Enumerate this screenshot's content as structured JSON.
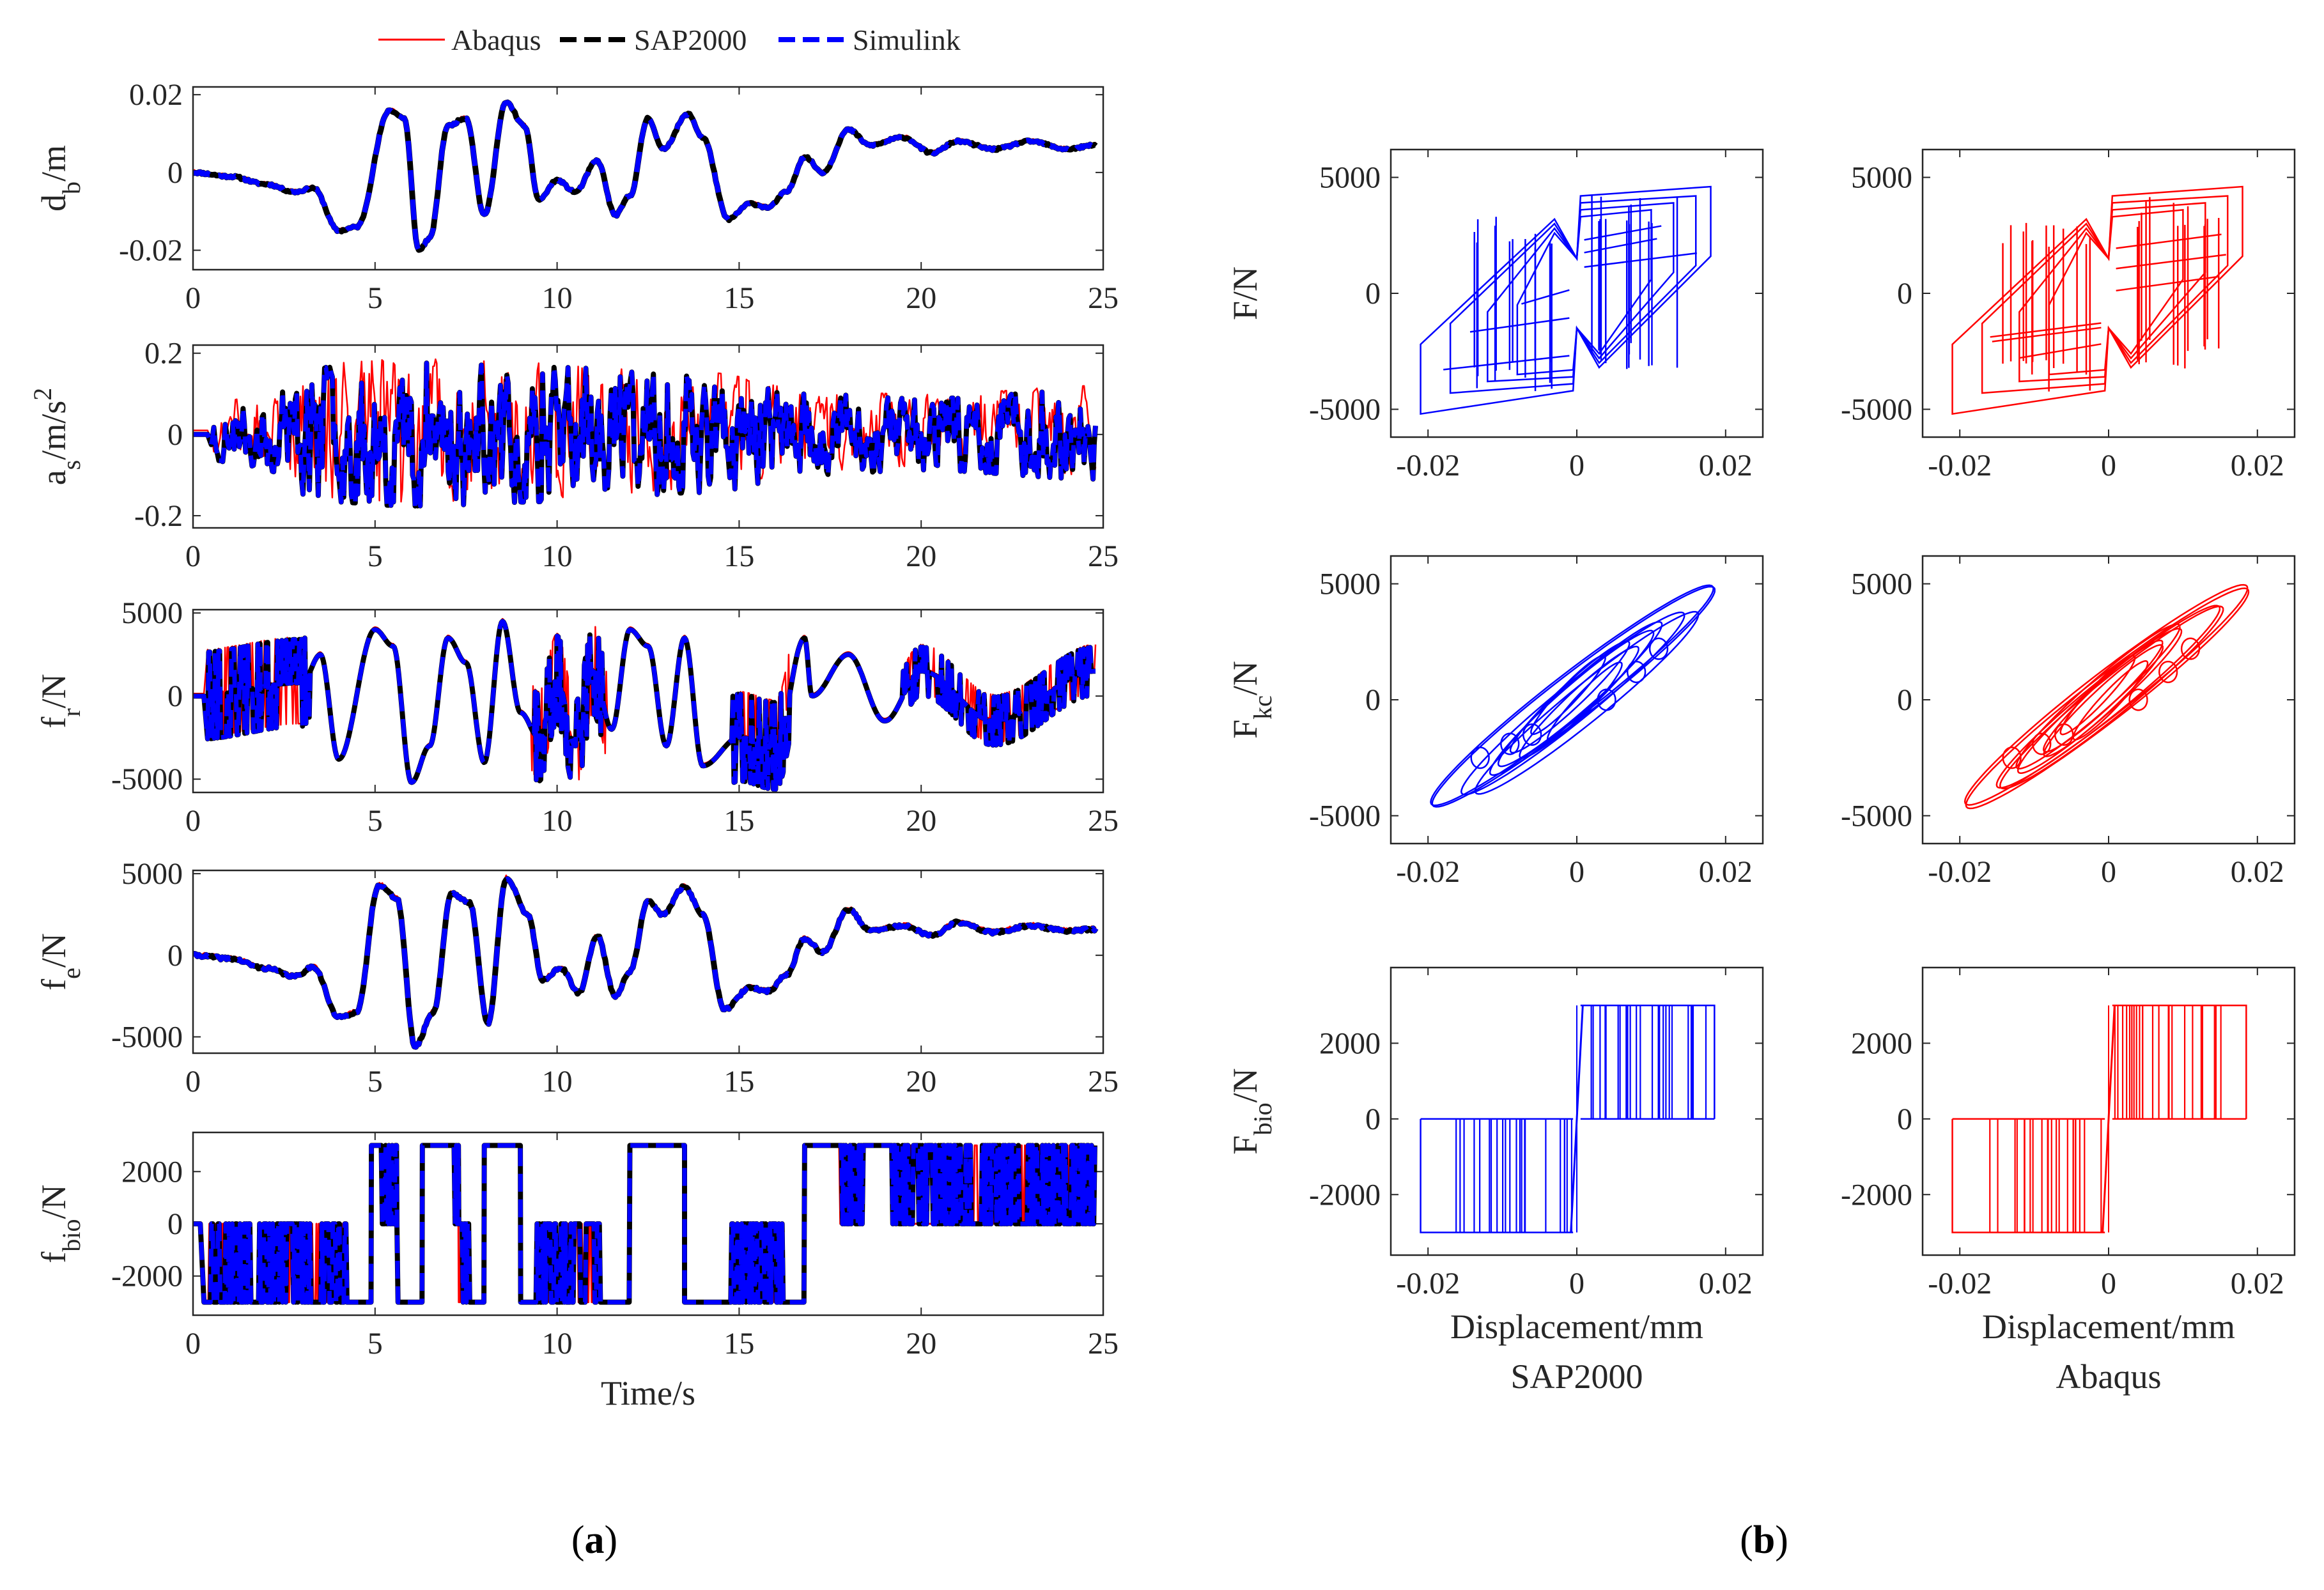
{
  "legend": [
    {
      "label": "Abaqus",
      "color": "#ff0000",
      "style": "solid"
    },
    {
      "label": "SAP2000",
      "color": "#000000",
      "style": "dashed"
    },
    {
      "label": "Simulink",
      "color": "#0000ff",
      "style": "dashed"
    }
  ],
  "panel_labels": {
    "a": {
      "open": "(",
      "letter": "a",
      "close": ")"
    },
    "b": {
      "open": "(",
      "letter": "b",
      "close": ")"
    }
  },
  "chart_data": [
    {
      "id": "ts1",
      "type": "line",
      "ylabel": {
        "main": "d",
        "sub": "b",
        "rest": "/m",
        "sup": ""
      },
      "xlabel": "",
      "xlim": [
        0,
        25
      ],
      "ylim": [
        -0.025,
        0.022
      ],
      "xticks": [
        0,
        5,
        10,
        15,
        20,
        25
      ],
      "xtick_labels": [
        "0",
        "5",
        "10",
        "15",
        "20",
        "25"
      ],
      "yticks": [
        0.02,
        0,
        -0.02
      ],
      "ytick_labels": [
        "0.02",
        "0",
        "-0.02"
      ],
      "signal": {
        "kind": "smooth",
        "seed": 11,
        "t0": 0,
        "keypoints": [
          [
            0,
            0
          ],
          [
            1,
            -0.001
          ],
          [
            2,
            -0.003
          ],
          [
            2.8,
            -0.005
          ],
          [
            3.3,
            -0.004
          ],
          [
            4,
            -0.015
          ],
          [
            4.5,
            -0.014
          ],
          [
            5.4,
            0.016
          ],
          [
            5.8,
            0.014
          ],
          [
            6.2,
            -0.02
          ],
          [
            6.5,
            -0.017
          ],
          [
            7,
            0.012
          ],
          [
            7.5,
            0.014
          ],
          [
            8,
            -0.011
          ],
          [
            8.6,
            0.018
          ],
          [
            9.1,
            0.012
          ],
          [
            9.5,
            -0.007
          ],
          [
            10,
            -0.002
          ],
          [
            10.5,
            -0.005
          ],
          [
            11.1,
            0.003
          ],
          [
            11.6,
            -0.011
          ],
          [
            12,
            -0.006
          ],
          [
            12.5,
            0.014
          ],
          [
            12.9,
            0.006
          ],
          [
            13.6,
            0.015
          ],
          [
            14,
            0.009
          ],
          [
            14.7,
            -0.012
          ],
          [
            15.3,
            -0.008
          ],
          [
            15.8,
            -0.009
          ],
          [
            16.3,
            -0.005
          ],
          [
            16.8,
            0.004
          ],
          [
            17.3,
            0.0
          ],
          [
            18,
            0.011
          ],
          [
            18.6,
            0.007
          ],
          [
            19.5,
            0.009
          ],
          [
            20.3,
            0.005
          ],
          [
            21,
            0.008
          ],
          [
            22,
            0.006
          ],
          [
            23,
            0.008
          ],
          [
            24,
            0.006
          ],
          [
            24.8,
            0.007
          ]
        ],
        "noise": 0.0003
      },
      "series": [
        {
          "name": "Abaqus",
          "color": "#ff0000",
          "width": 2.5,
          "dash": "",
          "offset": 0.0004
        },
        {
          "name": "SAP2000",
          "color": "#000000",
          "width": 9,
          "dash": "",
          "offset": 0
        },
        {
          "name": "Simulink",
          "color": "#0000ff",
          "width": 8,
          "dash": "32,14",
          "offset": 0
        }
      ]
    },
    {
      "id": "ts2",
      "type": "line",
      "ylabel": {
        "main": "a",
        "sub": "s",
        "rest": "/m/s",
        "sup": "2"
      },
      "xlabel": "",
      "xlim": [
        0,
        25
      ],
      "ylim": [
        -0.23,
        0.22
      ],
      "xticks": [
        0,
        5,
        10,
        15,
        20,
        25
      ],
      "xtick_labels": [
        "0",
        "5",
        "10",
        "15",
        "20",
        "25"
      ],
      "yticks": [
        0.2,
        0,
        -0.2
      ],
      "ytick_labels": [
        "0.2",
        "0",
        "-0.2"
      ],
      "signal": {
        "kind": "noisy",
        "seed": 23,
        "t0": 0.5,
        "amp": 0.13,
        "jitter": 0.06,
        "envelope": [
          [
            0,
            0.05
          ],
          [
            2,
            0.08
          ],
          [
            3.5,
            0.15
          ],
          [
            6,
            0.16
          ],
          [
            10,
            0.15
          ],
          [
            14,
            0.13
          ],
          [
            17,
            0.09
          ],
          [
            20,
            0.08
          ],
          [
            25,
            0.1
          ]
        ]
      },
      "series": [
        {
          "name": "Abaqus",
          "color": "#ff0000",
          "width": 2.5,
          "dash": "",
          "offset": 0.01
        },
        {
          "name": "SAP2000",
          "color": "#000000",
          "width": 8,
          "dash": "",
          "offset": 0
        },
        {
          "name": "Simulink",
          "color": "#0000ff",
          "width": 7,
          "dash": "28,12",
          "offset": 0
        }
      ]
    },
    {
      "id": "ts3",
      "type": "line",
      "ylabel": {
        "main": "f",
        "sub": "r",
        "rest": "/N",
        "sup": ""
      },
      "xlabel": "",
      "xlim": [
        0,
        25
      ],
      "ylim": [
        -5800,
        5200
      ],
      "xticks": [
        0,
        5,
        10,
        15,
        20,
        25
      ],
      "xtick_labels": [
        "0",
        "5",
        "10",
        "15",
        "20",
        "25"
      ],
      "yticks": [
        5000,
        0,
        -5000
      ],
      "ytick_labels": [
        "5000",
        "0",
        "-5000"
      ],
      "signal": {
        "kind": "switching",
        "seed": 37,
        "t0": 0.4,
        "base": [
          [
            0,
            0
          ],
          [
            3,
            800
          ],
          [
            3.5,
            2500
          ],
          [
            4,
            -3800
          ],
          [
            5,
            4000
          ],
          [
            5.5,
            3000
          ],
          [
            6,
            -5200
          ],
          [
            6.5,
            -3000
          ],
          [
            7,
            3500
          ],
          [
            7.5,
            2000
          ],
          [
            8,
            -4000
          ],
          [
            8.5,
            4500
          ],
          [
            9,
            -1000
          ],
          [
            9.5,
            -2500
          ],
          [
            10,
            1000
          ],
          [
            10.5,
            -3000
          ],
          [
            11,
            1500
          ],
          [
            11.5,
            -2000
          ],
          [
            12,
            4000
          ],
          [
            12.5,
            3000
          ],
          [
            13,
            -3000
          ],
          [
            13.5,
            3500
          ],
          [
            14,
            -4200
          ],
          [
            15,
            -2500
          ],
          [
            16,
            -3000
          ],
          [
            16.8,
            3500
          ],
          [
            17,
            0
          ],
          [
            18,
            2500
          ],
          [
            19,
            -1500
          ],
          [
            20,
            1500
          ],
          [
            22,
            -1500
          ],
          [
            24.8,
            1500
          ]
        ],
        "level": 2900
      },
      "series": [
        {
          "name": "Abaqus",
          "color": "#ff0000",
          "width": 2.5,
          "dash": "",
          "offset": 150
        },
        {
          "name": "SAP2000",
          "color": "#000000",
          "width": 8,
          "dash": "",
          "offset": 0
        },
        {
          "name": "Simulink",
          "color": "#0000ff",
          "width": 7,
          "dash": "28,12",
          "offset": 0
        }
      ]
    },
    {
      "id": "ts4",
      "type": "line",
      "ylabel": {
        "main": "f",
        "sub": "e",
        "rest": "/N",
        "sup": ""
      },
      "xlabel": "",
      "xlim": [
        0,
        25
      ],
      "ylim": [
        -6000,
        5200
      ],
      "xticks": [
        0,
        5,
        10,
        15,
        20,
        25
      ],
      "xtick_labels": [
        "0",
        "5",
        "10",
        "15",
        "20",
        "25"
      ],
      "yticks": [
        5000,
        0,
        -5000
      ],
      "ytick_labels": [
        "5000",
        "0",
        "-5000"
      ],
      "signal": {
        "kind": "smooth",
        "seed": 41,
        "t0": 0,
        "keypoints": [
          [
            0,
            0
          ],
          [
            1,
            -200
          ],
          [
            2,
            -800
          ],
          [
            2.8,
            -1300
          ],
          [
            3.3,
            -700
          ],
          [
            4,
            -3800
          ],
          [
            4.5,
            -3500
          ],
          [
            5.1,
            4300
          ],
          [
            5.6,
            3500
          ],
          [
            6.1,
            -5600
          ],
          [
            6.6,
            -3500
          ],
          [
            7.1,
            3800
          ],
          [
            7.6,
            3200
          ],
          [
            8.1,
            -4200
          ],
          [
            8.6,
            4700
          ],
          [
            9.2,
            2500
          ],
          [
            9.6,
            -1500
          ],
          [
            10.1,
            -800
          ],
          [
            10.6,
            -2300
          ],
          [
            11.1,
            1200
          ],
          [
            11.6,
            -2500
          ],
          [
            12,
            -1000
          ],
          [
            12.5,
            3300
          ],
          [
            12.9,
            2500
          ],
          [
            13.5,
            4200
          ],
          [
            14,
            2500
          ],
          [
            14.6,
            -3300
          ],
          [
            15.3,
            -2000
          ],
          [
            15.8,
            -2200
          ],
          [
            16.3,
            -1200
          ],
          [
            16.8,
            1000
          ],
          [
            17.3,
            200
          ],
          [
            18,
            2800
          ],
          [
            18.6,
            1500
          ],
          [
            19.5,
            1800
          ],
          [
            20.3,
            1200
          ],
          [
            21,
            2000
          ],
          [
            22,
            1400
          ],
          [
            23,
            1800
          ],
          [
            24,
            1500
          ],
          [
            24.8,
            1600
          ]
        ],
        "noise": 90
      },
      "series": [
        {
          "name": "Abaqus",
          "color": "#ff0000",
          "width": 2.5,
          "dash": "",
          "offset": 120
        },
        {
          "name": "SAP2000",
          "color": "#000000",
          "width": 9,
          "dash": "",
          "offset": 0
        },
        {
          "name": "Simulink",
          "color": "#0000ff",
          "width": 8,
          "dash": "32,14",
          "offset": 0
        }
      ]
    },
    {
      "id": "ts5",
      "type": "line",
      "ylabel": {
        "main": "f",
        "sub": "bio",
        "rest": "/N",
        "sup": ""
      },
      "xlabel": "Time/s",
      "xlim": [
        0,
        25
      ],
      "ylim": [
        -3500,
        3500
      ],
      "xticks": [
        0,
        5,
        10,
        15,
        20,
        25
      ],
      "xtick_labels": [
        "0",
        "5",
        "10",
        "15",
        "20",
        "25"
      ],
      "yticks": [
        2000,
        0,
        -2000
      ],
      "ytick_labels": [
        "2000",
        "0",
        "-2000"
      ],
      "signal": {
        "kind": "binary",
        "seed": 53,
        "t0": 0.3,
        "level": 3000,
        "segments": [
          [
            0.3,
            4.9,
            -1
          ],
          [
            4.9,
            5.6,
            1
          ],
          [
            5.6,
            6.3,
            -1
          ],
          [
            6.3,
            7.3,
            1
          ],
          [
            7.3,
            8.0,
            -1
          ],
          [
            8.0,
            9.0,
            1
          ],
          [
            9.0,
            9.9,
            -1
          ],
          [
            9.9,
            11.5,
            -1
          ],
          [
            11.5,
            12.0,
            -1
          ],
          [
            12.0,
            13.5,
            1
          ],
          [
            13.5,
            14.5,
            -1
          ],
          [
            14.5,
            16.8,
            -1
          ],
          [
            16.8,
            17.6,
            1
          ],
          [
            17.6,
            18.5,
            1
          ],
          [
            18.5,
            24.8,
            1
          ]
        ],
        "dense": [
          [
            0.4,
            4.2
          ],
          [
            5.2,
            5.6
          ],
          [
            7.2,
            7.6
          ],
          [
            9.4,
            10.0
          ],
          [
            10.1,
            11.2
          ],
          [
            14.7,
            16.2
          ],
          [
            17.7,
            18.4
          ],
          [
            19.2,
            24.8
          ]
        ]
      },
      "series": [
        {
          "name": "Abaqus",
          "color": "#ff0000",
          "width": 3,
          "dash": "",
          "offset": 0
        },
        {
          "name": "SAP2000",
          "color": "#000000",
          "width": 8,
          "dash": "",
          "offset": 0
        },
        {
          "name": "Simulink",
          "color": "#0000ff",
          "width": 7,
          "dash": "28,12",
          "offset": 0
        }
      ]
    },
    {
      "id": "hy1",
      "type": "line",
      "kind": "bilinear",
      "ylabel": {
        "main": "F",
        "sub": "",
        "rest": "/N",
        "sup": ""
      },
      "xlabel": "",
      "xlim": [
        -0.025,
        0.025
      ],
      "ylim": [
        -6200,
        6200
      ],
      "xticks": [
        -0.02,
        0,
        0.02
      ],
      "xtick_labels": [
        "-0.02",
        "0",
        "0.02"
      ],
      "yticks": [
        5000,
        0,
        -5000
      ],
      "ytick_labels": [
        "5000",
        "0",
        "-5000"
      ],
      "color": "#0000ff",
      "seed": 101
    },
    {
      "id": "hy2",
      "type": "line",
      "kind": "bilinear",
      "ylabel": {
        "main": "",
        "sub": "",
        "rest": "",
        "sup": ""
      },
      "xlabel": "",
      "xlim": [
        -0.025,
        0.025
      ],
      "ylim": [
        -6200,
        6200
      ],
      "xticks": [
        -0.02,
        0,
        0.02
      ],
      "xtick_labels": [
        "-0.02",
        "0",
        "0.02"
      ],
      "yticks": [
        5000,
        0,
        -5000
      ],
      "ytick_labels": [
        "5000",
        "0",
        "-5000"
      ],
      "color": "#ff0000",
      "seed": 202
    },
    {
      "id": "hy3",
      "type": "line",
      "kind": "elliptic",
      "ylabel": {
        "main": "F",
        "sub": "kc",
        "rest": "/N",
        "sup": ""
      },
      "xlabel": "",
      "xlim": [
        -0.025,
        0.025
      ],
      "ylim": [
        -6200,
        6200
      ],
      "xticks": [
        -0.02,
        0,
        0.02
      ],
      "xtick_labels": [
        "-0.02",
        "0",
        "0.02"
      ],
      "yticks": [
        5000,
        0,
        -5000
      ],
      "ytick_labels": [
        "5000",
        "0",
        "-5000"
      ],
      "color": "#0000ff",
      "seed": 303
    },
    {
      "id": "hy4",
      "type": "line",
      "kind": "elliptic",
      "ylabel": {
        "main": "",
        "sub": "",
        "rest": "",
        "sup": ""
      },
      "xlabel": "",
      "xlim": [
        -0.025,
        0.025
      ],
      "ylim": [
        -6200,
        6200
      ],
      "xticks": [
        -0.02,
        0,
        0.02
      ],
      "xtick_labels": [
        "-0.02",
        "0",
        "0.02"
      ],
      "yticks": [
        5000,
        0,
        -5000
      ],
      "ytick_labels": [
        "5000",
        "0",
        "-5000"
      ],
      "color": "#ff0000",
      "seed": 404
    },
    {
      "id": "hy5",
      "type": "line",
      "kind": "rect",
      "ylabel": {
        "main": "F",
        "sub": "bio",
        "rest": "/N",
        "sup": ""
      },
      "xlabel": "Displacement/mm",
      "caption": "SAP2000",
      "xlim": [
        -0.025,
        0.025
      ],
      "ylim": [
        -3600,
        4000
      ],
      "xticks": [
        -0.02,
        0,
        0.02
      ],
      "xtick_labels": [
        "-0.02",
        "0",
        "0.02"
      ],
      "yticks": [
        2000,
        0,
        -2000
      ],
      "ytick_labels": [
        "2000",
        "0",
        "-2000"
      ],
      "color": "#0000ff",
      "seed": 505
    },
    {
      "id": "hy6",
      "type": "line",
      "kind": "rect",
      "ylabel": {
        "main": "",
        "sub": "",
        "rest": "",
        "sup": ""
      },
      "xlabel": "Displacement/mm",
      "caption": "Abaqus",
      "xlim": [
        -0.025,
        0.025
      ],
      "ylim": [
        -3600,
        4000
      ],
      "xticks": [
        -0.02,
        0,
        0.02
      ],
      "xtick_labels": [
        "-0.02",
        "0",
        "0.02"
      ],
      "yticks": [
        2000,
        0,
        -2000
      ],
      "ytick_labels": [
        "2000",
        "0",
        "-2000"
      ],
      "color": "#ff0000",
      "seed": 606
    }
  ]
}
